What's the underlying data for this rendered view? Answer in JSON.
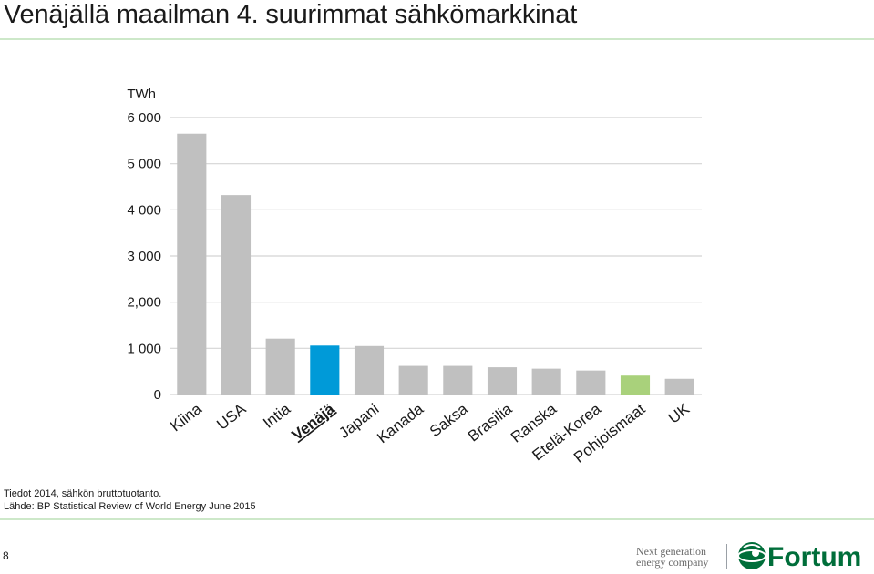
{
  "title": "Venäjällä maailman 4. suurimmat sähkömarkkinat",
  "chart_data": {
    "type": "bar",
    "ylabel": "TWh",
    "ylim": [
      0,
      6000
    ],
    "yticks": [
      {
        "value": 0,
        "label": "0"
      },
      {
        "value": 1000,
        "label": "1 000"
      },
      {
        "value": 2000,
        "label": "2,000"
      },
      {
        "value": 3000,
        "label": "3 000"
      },
      {
        "value": 4000,
        "label": "4 000"
      },
      {
        "value": 5000,
        "label": "5 000"
      },
      {
        "value": 6000,
        "label": "6 000"
      }
    ],
    "grid": true,
    "categories": [
      "Kiina",
      "USA",
      "Intia",
      "Venäjä",
      "Japani",
      "Kanada",
      "Saksa",
      "Brasilia",
      "Ranska",
      "Etelä-Korea",
      "Pohjoismaat",
      "UK"
    ],
    "values": [
      5650,
      4320,
      1210,
      1060,
      1050,
      620,
      620,
      590,
      560,
      520,
      410,
      340
    ],
    "colors": [
      "#c0c0c0",
      "#c0c0c0",
      "#c0c0c0",
      "#009ad8",
      "#c0c0c0",
      "#c0c0c0",
      "#c0c0c0",
      "#c0c0c0",
      "#c0c0c0",
      "#c0c0c0",
      "#a9d17b",
      "#c0c0c0"
    ],
    "highlight_category": "Venäjä"
  },
  "footnotes": {
    "line1": "Tiedot 2014, sähkön bruttotuotanto.",
    "line2": "Lähde: BP Statistical Review of World Energy June 2015"
  },
  "page_number": "8",
  "tagline": {
    "line1": "Next generation",
    "line2": "energy company"
  },
  "logo": {
    "brand": "Fortum",
    "color": "#006e3a",
    "icon": "fortum-globe-icon"
  }
}
